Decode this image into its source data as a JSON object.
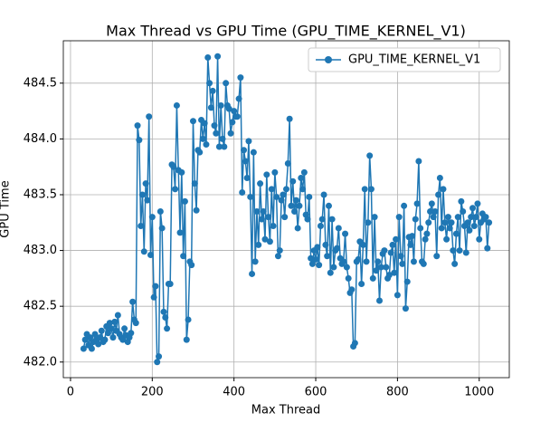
{
  "chart_data": {
    "type": "line",
    "title": "Max Thread vs GPU Time (GPU_TIME_KERNEL_V1)",
    "xlabel": "Max Thread",
    "ylabel": "GPU Time",
    "x": [
      32,
      36,
      40,
      44,
      48,
      52,
      56,
      60,
      64,
      68,
      72,
      76,
      80,
      84,
      88,
      92,
      96,
      100,
      104,
      108,
      112,
      116,
      120,
      124,
      128,
      132,
      136,
      140,
      144,
      148,
      152,
      156,
      160,
      164,
      168,
      172,
      176,
      180,
      184,
      188,
      192,
      196,
      200,
      204,
      208,
      212,
      216,
      220,
      224,
      228,
      232,
      236,
      240,
      244,
      248,
      252,
      256,
      260,
      264,
      268,
      272,
      276,
      280,
      284,
      288,
      292,
      296,
      300,
      304,
      308,
      312,
      316,
      320,
      324,
      328,
      332,
      336,
      340,
      344,
      348,
      352,
      356,
      360,
      364,
      368,
      372,
      376,
      380,
      384,
      388,
      392,
      396,
      400,
      404,
      408,
      412,
      416,
      420,
      424,
      428,
      432,
      436,
      440,
      444,
      448,
      452,
      456,
      460,
      464,
      468,
      472,
      476,
      480,
      484,
      488,
      492,
      496,
      500,
      504,
      508,
      512,
      516,
      520,
      524,
      528,
      532,
      536,
      540,
      544,
      548,
      552,
      556,
      560,
      564,
      568,
      572,
      576,
      580,
      584,
      588,
      592,
      596,
      600,
      604,
      608,
      612,
      616,
      620,
      624,
      628,
      632,
      636,
      640,
      644,
      648,
      652,
      656,
      660,
      664,
      668,
      672,
      676,
      680,
      684,
      688,
      692,
      696,
      700,
      704,
      708,
      712,
      716,
      720,
      724,
      728,
      732,
      736,
      740,
      744,
      748,
      752,
      756,
      760,
      764,
      768,
      772,
      776,
      780,
      784,
      788,
      792,
      796,
      800,
      804,
      808,
      812,
      816,
      820,
      824,
      828,
      832,
      836,
      840,
      844,
      848,
      852,
      856,
      860,
      864,
      868,
      872,
      876,
      880,
      884,
      888,
      892,
      896,
      900,
      904,
      908,
      912,
      916,
      920,
      924,
      928,
      932,
      936,
      940,
      944,
      948,
      952,
      956,
      960,
      964,
      968,
      972,
      976,
      980,
      984,
      988,
      992,
      996,
      1000,
      1004,
      1008,
      1012,
      1016,
      1020,
      1024
    ],
    "series": [
      {
        "name": "GPU_TIME_KERNEL_V1",
        "color": "#1f77b4",
        "values": [
          482.12,
          482.2,
          482.25,
          482.15,
          482.22,
          482.12,
          482.18,
          482.25,
          482.2,
          482.16,
          482.22,
          482.28,
          482.18,
          482.2,
          482.32,
          482.26,
          482.35,
          482.3,
          482.22,
          482.36,
          482.28,
          482.42,
          482.25,
          482.22,
          482.2,
          482.3,
          482.24,
          482.18,
          482.22,
          482.26,
          482.54,
          482.38,
          482.35,
          484.12,
          483.99,
          483.22,
          483.5,
          482.99,
          483.6,
          483.45,
          484.2,
          482.96,
          483.3,
          482.58,
          482.68,
          482.0,
          482.05,
          483.35,
          483.2,
          482.45,
          482.4,
          482.3,
          482.7,
          482.7,
          483.77,
          483.75,
          483.55,
          484.3,
          483.72,
          483.16,
          483.7,
          482.95,
          483.44,
          482.2,
          482.38,
          482.9,
          482.87,
          484.16,
          483.6,
          483.36,
          483.9,
          483.88,
          484.17,
          484.0,
          484.14,
          483.95,
          484.73,
          484.5,
          484.28,
          484.43,
          484.12,
          484.05,
          484.74,
          483.93,
          484.3,
          484.0,
          483.93,
          484.5,
          484.3,
          484.27,
          484.05,
          484.15,
          484.25,
          484.2,
          484.2,
          484.36,
          484.55,
          483.52,
          483.9,
          483.8,
          483.65,
          483.98,
          483.48,
          482.79,
          483.88,
          482.9,
          483.35,
          483.05,
          483.6,
          483.28,
          483.35,
          483.1,
          483.68,
          483.3,
          483.08,
          483.55,
          483.22,
          483.7,
          483.48,
          482.95,
          483.0,
          483.45,
          483.5,
          483.3,
          483.55,
          483.78,
          484.18,
          483.4,
          483.62,
          483.35,
          483.45,
          483.2,
          483.4,
          483.65,
          483.55,
          483.7,
          483.32,
          483.28,
          483.48,
          482.93,
          482.88,
          483.0,
          482.92,
          483.03,
          482.87,
          483.22,
          483.28,
          483.5,
          483.05,
          482.95,
          483.4,
          482.8,
          483.28,
          482.85,
          483.0,
          483.02,
          483.2,
          482.93,
          482.88,
          482.9,
          483.15,
          482.85,
          482.75,
          482.62,
          482.65,
          482.14,
          482.17,
          482.9,
          482.92,
          483.08,
          482.7,
          483.05,
          483.55,
          482.9,
          483.25,
          483.85,
          483.55,
          482.75,
          483.3,
          482.82,
          482.9,
          482.55,
          482.85,
          482.97,
          483.0,
          482.85,
          482.75,
          482.78,
          482.98,
          483.05,
          482.8,
          483.1,
          482.6,
          483.3,
          482.95,
          482.88,
          483.4,
          482.48,
          482.72,
          483.12,
          483.05,
          483.13,
          482.9,
          483.28,
          483.42,
          483.8,
          483.2,
          482.9,
          482.88,
          483.1,
          483.15,
          483.25,
          483.35,
          483.42,
          483.3,
          483.35,
          482.95,
          483.5,
          483.65,
          483.2,
          483.55,
          483.25,
          483.1,
          483.3,
          483.2,
          483.25,
          483.0,
          482.88,
          483.15,
          483.3,
          483.0,
          483.44,
          483.35,
          483.22,
          482.98,
          483.25,
          483.18,
          483.3,
          483.38,
          483.22,
          483.3,
          483.42,
          483.1,
          483.25,
          483.33,
          483.28,
          483.3,
          483.02,
          483.25
        ]
      }
    ],
    "xlim": [
      -17.6,
      1073.6
    ],
    "ylim": [
      481.86,
      484.88
    ],
    "xticks": [
      0,
      200,
      400,
      600,
      800,
      1000
    ],
    "yticks": [
      {
        "value": 482,
        "label": "482.0"
      },
      {
        "value": 482.5,
        "label": "482.5"
      },
      {
        "value": 483,
        "label": "483.0"
      },
      {
        "value": 483.5,
        "label": "483.5"
      },
      {
        "value": 484,
        "label": "484.0"
      },
      {
        "value": 484.5,
        "label": "484.5"
      }
    ],
    "grid": true,
    "legend": "upper right"
  }
}
